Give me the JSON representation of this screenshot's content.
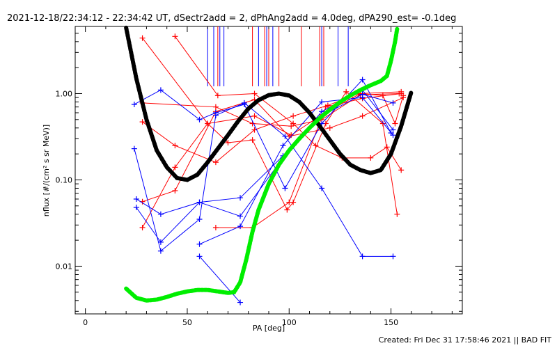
{
  "chart_data": {
    "type": "scatter",
    "title": "2021-12-18/22:34:12 - 22:34:42 UT, dSectr2add = 2, dPhAng2add = 4.0deg, dPA290_est= -0.1deg",
    "xlabel": "PA [deg]",
    "ylabel": "nflux [#/(cm² s sr MeV)]",
    "xlim": [
      -5,
      185
    ],
    "ylim": [
      0.0028,
      6.0
    ],
    "yscale": "log",
    "grid": false,
    "x_ticks": [
      0,
      50,
      100,
      150
    ],
    "x_tick_labels": [
      "0",
      "50",
      "100",
      "150"
    ],
    "y_ticks": [
      0.01,
      0.1,
      1.0
    ],
    "y_tick_labels": [
      "0.01",
      "0.10",
      "1.00"
    ],
    "footer": "Created: Fri Dec 31 17:58:46 2021 || BAD FIT",
    "colors": {
      "red": "#ff0000",
      "blue": "#0000ff",
      "black": "#000000",
      "green": "#00ee00"
    },
    "vertical_markers": [
      {
        "color": "blue",
        "x": [
          60,
          63,
          66,
          68,
          85,
          89,
          92,
          116,
          124,
          129
        ]
      },
      {
        "color": "red",
        "x": [
          65,
          82,
          88,
          90,
          95,
          106,
          115,
          117
        ]
      }
    ],
    "series": [
      {
        "color": "red",
        "points": [
          [
            28,
            4.4
          ],
          [
            60,
            0.45
          ],
          [
            70,
            0.27
          ],
          [
            82,
            0.29
          ],
          [
            99,
            0.045
          ],
          [
            102,
            0.055
          ],
          [
            118,
            0.45
          ],
          [
            128,
            1.05
          ],
          [
            146,
            0.45
          ],
          [
            153,
            0.04
          ]
        ]
      },
      {
        "color": "red",
        "points": [
          [
            44,
            4.6
          ],
          [
            65,
            0.95
          ],
          [
            83,
            1.0
          ],
          [
            102,
            0.45
          ],
          [
            113,
            0.25
          ],
          [
            126,
            0.18
          ],
          [
            140,
            0.18
          ],
          [
            148,
            0.24
          ],
          [
            155,
            0.13
          ]
        ]
      },
      {
        "color": "red",
        "points": [
          [
            28,
            0.028
          ],
          [
            44,
            0.14
          ],
          [
            60,
            0.45
          ],
          [
            83,
            0.55
          ],
          [
            101,
            0.33
          ],
          [
            116,
            0.57
          ],
          [
            135,
            1.0
          ],
          [
            146,
            0.95
          ],
          [
            152,
            0.45
          ],
          [
            156,
            0.95
          ]
        ]
      },
      {
        "color": "red",
        "points": [
          [
            28,
            0.47
          ],
          [
            44,
            0.25
          ],
          [
            64,
            0.16
          ],
          [
            83,
            0.38
          ],
          [
            102,
            0.55
          ],
          [
            119,
            0.73
          ],
          [
            134,
            1.0
          ],
          [
            155,
            1.05
          ]
        ]
      },
      {
        "color": "red",
        "points": [
          [
            28,
            0.78
          ],
          [
            64,
            0.7
          ],
          [
            82,
            0.45
          ],
          [
            101,
            0.42
          ],
          [
            116,
            0.5
          ],
          [
            135,
            0.97
          ],
          [
            154,
            1.0
          ]
        ]
      },
      {
        "color": "red",
        "points": [
          [
            28,
            0.056
          ],
          [
            44,
            0.075
          ],
          [
            64,
            0.62
          ],
          [
            83,
            0.85
          ],
          [
            100,
            0.32
          ],
          [
            120,
            0.4
          ],
          [
            136,
            0.55
          ],
          [
            156,
            0.9
          ]
        ]
      },
      {
        "color": "red",
        "points": [
          [
            64,
            0.028
          ],
          [
            82,
            0.028
          ],
          [
            100,
            0.055
          ],
          [
            118,
            0.7
          ],
          [
            136,
            0.88
          ],
          [
            155,
            1.0
          ]
        ]
      },
      {
        "color": "blue",
        "points": [
          [
            24,
            0.23
          ],
          [
            37,
            0.015
          ],
          [
            56,
            0.035
          ],
          [
            64,
            0.56
          ],
          [
            78,
            0.78
          ],
          [
            98,
            0.32
          ],
          [
            116,
            0.08
          ],
          [
            136,
            0.013
          ],
          [
            151,
            0.013
          ]
        ]
      },
      {
        "color": "blue",
        "points": [
          [
            24,
            0.75
          ],
          [
            37,
            1.1
          ],
          [
            56,
            0.5
          ],
          [
            64,
            0.6
          ],
          [
            78,
            0.75
          ],
          [
            98,
            0.08
          ],
          [
            116,
            0.45
          ],
          [
            136,
            1.45
          ],
          [
            150,
            0.35
          ]
        ]
      },
      {
        "color": "blue",
        "points": [
          [
            25,
            0.06
          ],
          [
            37,
            0.04
          ],
          [
            56,
            0.055
          ],
          [
            76,
            0.062
          ],
          [
            97,
            0.19
          ],
          [
            116,
            0.55
          ],
          [
            136,
            0.98
          ],
          [
            151,
            0.78
          ]
        ]
      },
      {
        "color": "blue",
        "points": [
          [
            25,
            0.048
          ],
          [
            37,
            0.019
          ],
          [
            56,
            0.055
          ],
          [
            76,
            0.038
          ],
          [
            97,
            0.18
          ],
          [
            116,
            0.62
          ],
          [
            136,
            1.1
          ],
          [
            151,
            0.38
          ]
        ]
      },
      {
        "color": "blue",
        "points": [
          [
            56,
            0.013
          ],
          [
            76,
            0.0038
          ]
        ]
      },
      {
        "color": "blue",
        "points": [
          [
            56,
            0.018
          ],
          [
            76,
            0.029
          ],
          [
            97,
            0.25
          ],
          [
            116,
            0.8
          ],
          [
            136,
            0.9
          ],
          [
            151,
            0.33
          ]
        ]
      }
    ],
    "fit_curves": [
      {
        "color": "black",
        "points": [
          [
            20,
            5.8
          ],
          [
            25,
            1.5
          ],
          [
            30,
            0.5
          ],
          [
            35,
            0.22
          ],
          [
            40,
            0.14
          ],
          [
            45,
            0.105
          ],
          [
            50,
            0.1
          ],
          [
            55,
            0.115
          ],
          [
            60,
            0.16
          ],
          [
            65,
            0.23
          ],
          [
            70,
            0.33
          ],
          [
            75,
            0.48
          ],
          [
            80,
            0.67
          ],
          [
            85,
            0.84
          ],
          [
            90,
            0.96
          ],
          [
            95,
            1.0
          ],
          [
            100,
            0.95
          ],
          [
            105,
            0.8
          ],
          [
            110,
            0.6
          ],
          [
            115,
            0.42
          ],
          [
            120,
            0.29
          ],
          [
            125,
            0.2
          ],
          [
            130,
            0.15
          ],
          [
            135,
            0.13
          ],
          [
            140,
            0.12
          ],
          [
            145,
            0.13
          ],
          [
            150,
            0.2
          ],
          [
            155,
            0.42
          ],
          [
            160,
            1.05
          ]
        ]
      },
      {
        "color": "green",
        "points": [
          [
            20,
            0.0055
          ],
          [
            25,
            0.0043
          ],
          [
            30,
            0.004
          ],
          [
            35,
            0.0041
          ],
          [
            40,
            0.0044
          ],
          [
            45,
            0.0048
          ],
          [
            50,
            0.0051
          ],
          [
            55,
            0.0053
          ],
          [
            60,
            0.0053
          ],
          [
            65,
            0.0051
          ],
          [
            70,
            0.0049
          ],
          [
            73,
            0.005
          ],
          [
            76,
            0.0065
          ],
          [
            79,
            0.012
          ],
          [
            82,
            0.025
          ],
          [
            85,
            0.045
          ],
          [
            90,
            0.09
          ],
          [
            95,
            0.15
          ],
          [
            100,
            0.22
          ],
          [
            105,
            0.3
          ],
          [
            110,
            0.4
          ],
          [
            115,
            0.52
          ],
          [
            120,
            0.65
          ],
          [
            125,
            0.8
          ],
          [
            130,
            0.95
          ],
          [
            135,
            1.1
          ],
          [
            140,
            1.25
          ],
          [
            145,
            1.4
          ],
          [
            148,
            1.6
          ],
          [
            150,
            2.4
          ],
          [
            152,
            4.0
          ],
          [
            153,
            5.6
          ]
        ]
      }
    ]
  }
}
